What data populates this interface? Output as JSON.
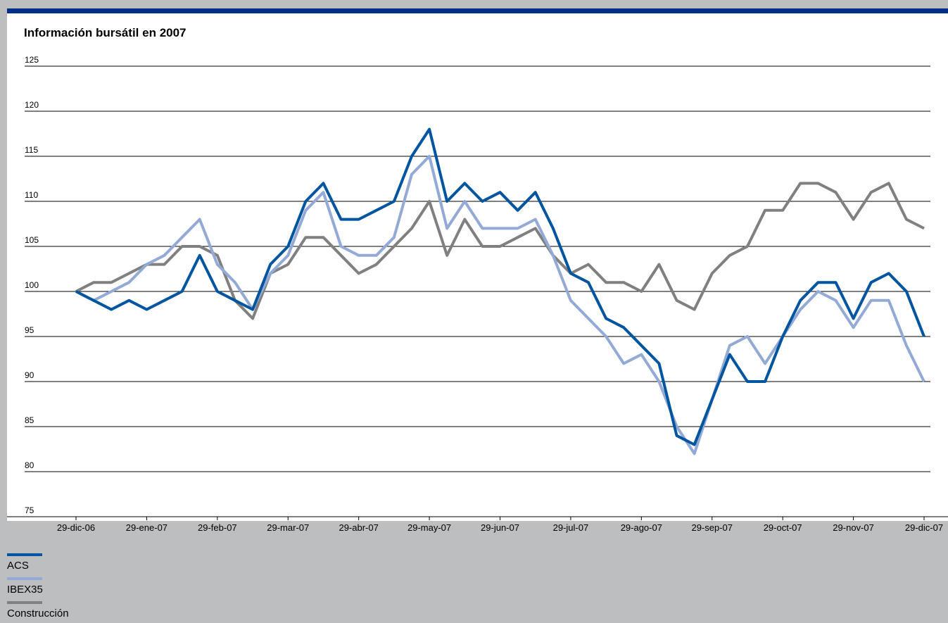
{
  "chart_data": {
    "type": "line",
    "title": "Información bursátil en 2007",
    "categories": [
      "29-dic-06",
      null,
      null,
      null,
      "29-ene-07",
      null,
      null,
      null,
      "29-feb-07",
      null,
      null,
      null,
      "29-mar-07",
      null,
      null,
      null,
      "29-abr-07",
      null,
      null,
      null,
      "29-may-07",
      null,
      null,
      null,
      "29-jun-07",
      null,
      null,
      null,
      "29-jul-07",
      null,
      null,
      null,
      "29-ago-07",
      null,
      null,
      null,
      "29-sep-07",
      null,
      null,
      null,
      "29-oct-07",
      null,
      null,
      null,
      "29-nov-07",
      null,
      null,
      null,
      "29-dic-07"
    ],
    "series": [
      {
        "name": "ACS",
        "color": "#0055a0",
        "values": [
          100,
          99,
          98,
          99,
          98,
          99,
          100,
          104,
          100,
          99,
          98,
          103,
          105,
          110,
          112,
          108,
          108,
          109,
          110,
          115,
          118,
          110,
          112,
          110,
          111,
          109,
          111,
          107,
          102,
          101,
          97,
          96,
          94,
          92,
          84,
          83,
          88,
          93,
          90,
          90,
          95,
          99,
          101,
          101,
          97,
          101,
          102,
          100,
          95
        ]
      },
      {
        "name": "IBEX35",
        "color": "#94aad6",
        "values": [
          100,
          99,
          100,
          101,
          103,
          104,
          106,
          108,
          103,
          101,
          98,
          102,
          104,
          109,
          111,
          105,
          104,
          104,
          106,
          113,
          115,
          107,
          110,
          107,
          107,
          107,
          108,
          104,
          99,
          97,
          95,
          92,
          93,
          90,
          85,
          82,
          88,
          94,
          95,
          92,
          95,
          98,
          100,
          99,
          96,
          99,
          99,
          94,
          90
        ]
      },
      {
        "name": "Construcción",
        "color": "#808080",
        "values": [
          100,
          101,
          101,
          102,
          103,
          103,
          105,
          105,
          104,
          99,
          97,
          102,
          103,
          106,
          106,
          104,
          102,
          103,
          105,
          107,
          110,
          104,
          108,
          105,
          105,
          106,
          107,
          104,
          102,
          103,
          101,
          101,
          100,
          103,
          99,
          98,
          102,
          104,
          105,
          109,
          109,
          112,
          112,
          111,
          108,
          111,
          112,
          108,
          107
        ]
      }
    ],
    "ylim": [
      75,
      125
    ],
    "yticks": [
      75,
      80,
      85,
      90,
      95,
      100,
      105,
      110,
      115,
      120,
      125
    ],
    "grid": true,
    "legend": "bottom-left"
  }
}
